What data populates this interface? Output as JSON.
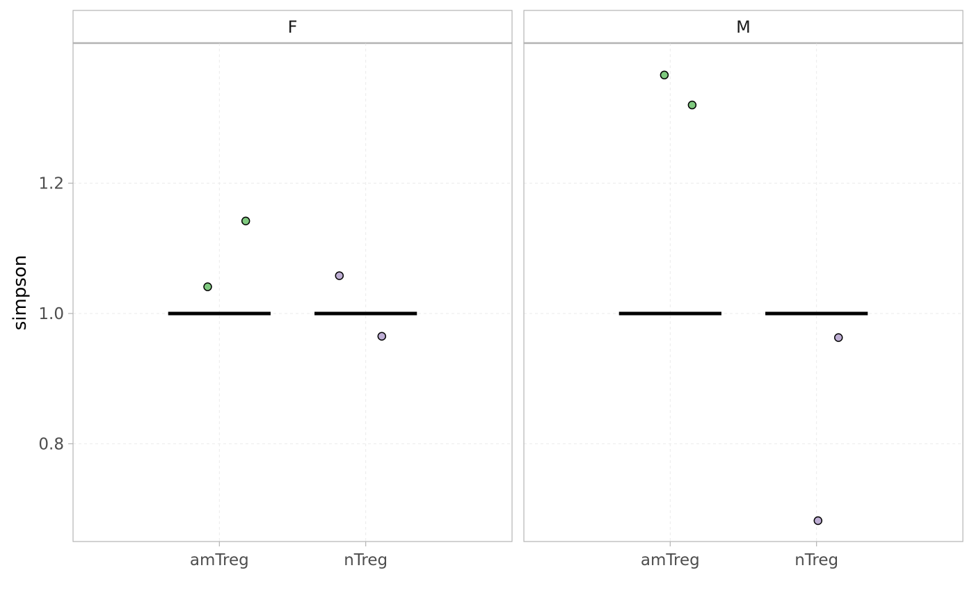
{
  "chart_data": {
    "type": "scatter",
    "facets": [
      "F",
      "M"
    ],
    "categories": [
      "amTreg",
      "nTreg"
    ],
    "ylabel": "simpson",
    "xlabel": "",
    "ylim": [
      0.65,
      1.415
    ],
    "yticks": [
      0.8,
      1.0,
      1.2
    ],
    "ytick_labels": [
      "0.8",
      "1.0",
      "1.2"
    ],
    "grid": true,
    "legend": "none",
    "colors": {
      "amTreg": "#7fc97f",
      "nTreg": "#beaed4",
      "median_line": "#000000",
      "panel_border": "#b3b3b3"
    },
    "panels": [
      {
        "facet": "F",
        "points": [
          {
            "category": "amTreg",
            "jitter": -0.08,
            "y": 1.041
          },
          {
            "category": "amTreg",
            "jitter": 0.18,
            "y": 1.142
          },
          {
            "category": "nTreg",
            "jitter": -0.18,
            "y": 1.058
          },
          {
            "category": "nTreg",
            "jitter": 0.11,
            "y": 0.965
          }
        ],
        "medians": [
          {
            "category": "amTreg",
            "y": 1.0
          },
          {
            "category": "nTreg",
            "y": 1.0
          }
        ]
      },
      {
        "facet": "M",
        "points": [
          {
            "category": "amTreg",
            "jitter": -0.04,
            "y": 1.366
          },
          {
            "category": "amTreg",
            "jitter": 0.15,
            "y": 1.32
          },
          {
            "category": "nTreg",
            "jitter": 0.01,
            "y": 0.682
          },
          {
            "category": "nTreg",
            "jitter": 0.15,
            "y": 0.963
          }
        ],
        "medians": [
          {
            "category": "amTreg",
            "y": 1.0
          },
          {
            "category": "nTreg",
            "y": 1.0
          }
        ]
      }
    ]
  }
}
